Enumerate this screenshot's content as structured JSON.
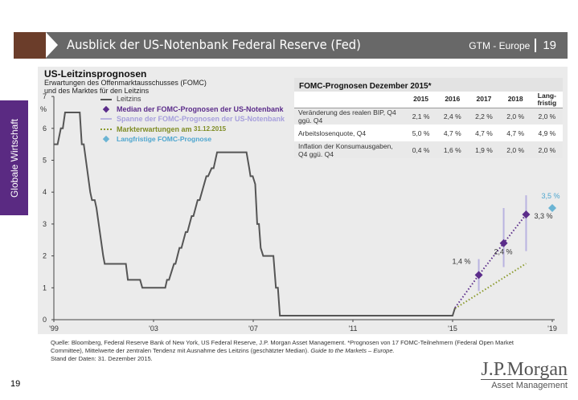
{
  "header": {
    "title": "Ausblick der US-Notenbank Federal Reserve (Fed)",
    "section": "GTM - Europe",
    "page": "19"
  },
  "sidebar": {
    "label": "Globale Wirtschaft"
  },
  "panel": {
    "title": "US-Leitzinsprognosen",
    "subtitle_1": "Erwartungen des Offenmarktausschusses (FOMC)",
    "subtitle_2": "und des Marktes für den Leitzins"
  },
  "table": {
    "title": "FOMC-Prognosen Dezember 2015*",
    "columns": [
      "2015",
      "2016",
      "2017",
      "2018",
      "Lang-\nfristig"
    ],
    "rows": [
      {
        "label": "Veränderung des realen BIP, Q4 ggü. Q4",
        "values": [
          "2,1 %",
          "2,4 %",
          "2,2 %",
          "2,0 %",
          "2,0 %"
        ]
      },
      {
        "label": "Arbeitslosenquote, Q4",
        "values": [
          "5,0 %",
          "4,7 %",
          "4,7 %",
          "4,7 %",
          "4,9 %"
        ]
      },
      {
        "label": "Inflation der Konsumausgaben, Q4 ggü. Q4",
        "values": [
          "0,4 %",
          "1,6 %",
          "1,9 %",
          "2,0 %",
          "2,0 %"
        ]
      }
    ]
  },
  "footer": {
    "source": "Quelle: Bloomberg, Federal Reserve Bank of New York, US Federal Reserve, J.P. Morgan Asset Management. *Prognosen von 17 FOMC-Teilnehmern (Federal Open Market Committee), Mittelwerte der zentralen Tendenz mit Ausnahme des Leitzins (geschätzter Median).",
    "source_italic": "Guide to the Markets – Europe.",
    "date": "Stand der Daten: 31. Dezember 2015.",
    "page": "19",
    "logo_1": "J.P.Morgan",
    "logo_2": "Asset Management"
  },
  "colors": {
    "leitzins": "#555555",
    "median": "#5b2c8a",
    "range": "#b9b3e0",
    "market": "#8a9a2c",
    "longrun": "#6bb4d4"
  },
  "chart_data": {
    "type": "line",
    "title": "US-Leitzinsprognosen",
    "ylabel": "%",
    "ylim": [
      0,
      7
    ],
    "xlim": [
      1999,
      2019
    ],
    "yticks": [
      "0",
      "1",
      "2",
      "3",
      "4",
      "5",
      "6",
      "7"
    ],
    "xticks": [
      {
        "v": 1999,
        "l": "'99"
      },
      {
        "v": 2003,
        "l": "'03"
      },
      {
        "v": 2007,
        "l": "'07"
      },
      {
        "v": 2011,
        "l": "'11"
      },
      {
        "v": 2015,
        "l": "'15"
      },
      {
        "v": 2019,
        "l": "'19"
      }
    ],
    "legend": [
      "Leitzins",
      "Median der FOMC-Prognosen der US-Notenbank",
      "Spanne der FOMC-Prognosen der US-Notenbank",
      "Markterwartungen am",
      "31.12.2015",
      "Langfristige FOMC-Prognose"
    ],
    "leitzins": [
      [
        1999.0,
        5.5
      ],
      [
        1999.15,
        5.5
      ],
      [
        1999.28,
        6.0
      ],
      [
        1999.36,
        6.0
      ],
      [
        1999.45,
        6.5
      ],
      [
        2000.04,
        6.5
      ],
      [
        2000.12,
        5.5
      ],
      [
        2000.2,
        5.5
      ],
      [
        2000.46,
        4.0
      ],
      [
        2000.53,
        3.75
      ],
      [
        2000.64,
        3.75
      ],
      [
        2000.71,
        3.5
      ],
      [
        2000.98,
        2.0
      ],
      [
        2001.04,
        1.75
      ],
      [
        2001.89,
        1.75
      ],
      [
        2001.97,
        1.25
      ],
      [
        2002.46,
        1.25
      ],
      [
        2002.55,
        1.0
      ],
      [
        2003.47,
        1.0
      ],
      [
        2003.54,
        1.25
      ],
      [
        2003.62,
        1.25
      ],
      [
        2003.82,
        1.75
      ],
      [
        2003.88,
        1.75
      ],
      [
        2004.04,
        2.25
      ],
      [
        2004.12,
        2.25
      ],
      [
        2004.29,
        2.75
      ],
      [
        2004.36,
        2.75
      ],
      [
        2004.53,
        3.25
      ],
      [
        2004.6,
        3.25
      ],
      [
        2004.77,
        3.75
      ],
      [
        2004.85,
        3.75
      ],
      [
        2005.12,
        4.5
      ],
      [
        2005.19,
        4.5
      ],
      [
        2005.33,
        4.75
      ],
      [
        2005.41,
        4.75
      ],
      [
        2005.55,
        5.25
      ],
      [
        2006.73,
        5.25
      ],
      [
        2006.84,
        4.75
      ],
      [
        2006.89,
        4.5
      ],
      [
        2006.98,
        4.5
      ],
      [
        2007.08,
        4.25
      ],
      [
        2007.16,
        3.0
      ],
      [
        2007.23,
        3.0
      ],
      [
        2007.3,
        2.25
      ],
      [
        2007.4,
        2.0
      ],
      [
        2007.81,
        2.0
      ],
      [
        2007.91,
        1.0
      ],
      [
        2007.99,
        1.0
      ],
      [
        2008.07,
        0.125
      ],
      [
        2015.0,
        0.125
      ],
      [
        2015.1,
        0.375
      ]
    ],
    "median": [
      {
        "x": 2016.05,
        "y": 1.4,
        "label": "1,4 %"
      },
      {
        "x": 2017.05,
        "y": 2.4,
        "label": "2,4 %"
      },
      {
        "x": 2017.95,
        "y": 3.3,
        "label": "3,3 %"
      }
    ],
    "range": [
      {
        "x": 2016.05,
        "lo": 0.9,
        "hi": 1.9
      },
      {
        "x": 2017.05,
        "lo": 1.65,
        "hi": 3.5
      },
      {
        "x": 2017.95,
        "lo": 2.15,
        "hi": 3.9
      }
    ],
    "market": [
      [
        2015.1,
        0.35
      ],
      [
        2017.95,
        1.76
      ]
    ],
    "longrun": {
      "x": 2019.0,
      "y": 3.5,
      "label": "3,5 %"
    }
  }
}
